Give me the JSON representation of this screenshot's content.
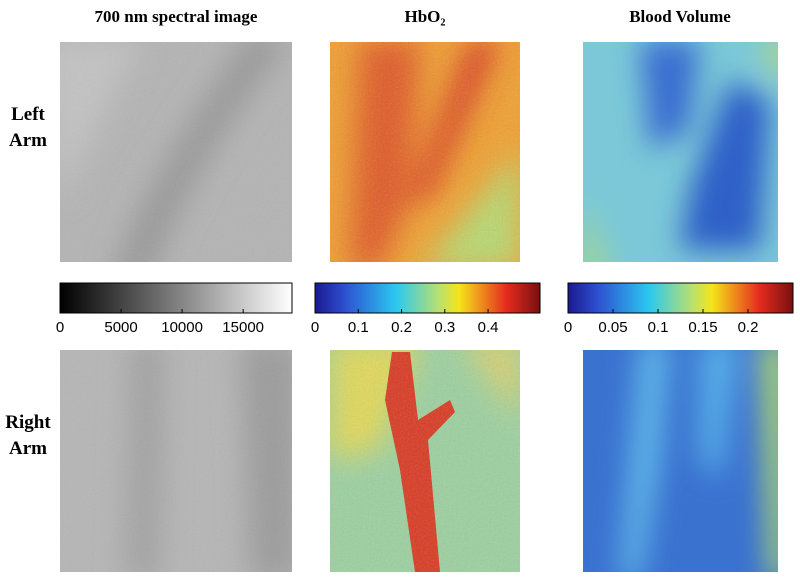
{
  "columns": [
    "700 nm spectral image",
    "HbO₂",
    "Blood Volume"
  ],
  "rows": [
    [
      "Left",
      "Arm"
    ],
    [
      "Right",
      "Arm"
    ]
  ],
  "colorbars": [
    {
      "colormap": "gray",
      "range": [
        0,
        19000
      ],
      "ticks": [
        0,
        5000,
        10000,
        15000
      ]
    },
    {
      "colormap": "jet",
      "range": [
        0,
        0.52
      ],
      "ticks": [
        0,
        0.1,
        0.2,
        0.3,
        0.4
      ]
    },
    {
      "colormap": "jet",
      "range": [
        0,
        0.25
      ],
      "ticks": [
        0,
        0.05,
        0.1,
        0.15,
        0.2
      ]
    }
  ]
}
